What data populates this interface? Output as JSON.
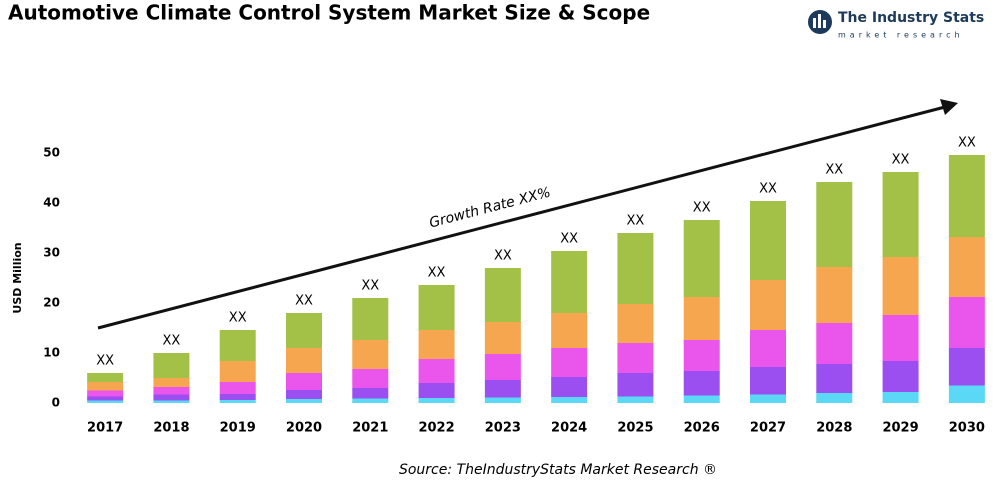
{
  "chart_data": {
    "type": "stacked-bar",
    "title": "Automotive Climate Control System Market Size & Scope",
    "brand": "The Industry Stats",
    "brand_sub": "market research",
    "y_label": "USD Million",
    "annotation": "Growth Rate XX%",
    "source": "Source: TheIndustryStats Market Research ®",
    "categories": [
      "2017",
      "2018",
      "2019",
      "2020",
      "2021",
      "2022",
      "2023",
      "2024",
      "2025",
      "2026",
      "2027",
      "2028",
      "2029",
      "2030"
    ],
    "top_labels": [
      "XX",
      "XX",
      "XX",
      "XX",
      "XX",
      "XX",
      "XX",
      "XX",
      "XX",
      "XX",
      "XX",
      "XX",
      "XX",
      "XX"
    ],
    "series": [
      {
        "color": "#5ad8f5",
        "values": [
          0.5,
          0.5,
          0.6,
          0.8,
          0.9,
          1,
          1.1,
          1.2,
          1.3,
          1.5,
          1.7,
          2,
          2.2,
          3.5
        ]
      },
      {
        "color": "#9b4ff0",
        "values": [
          0.8,
          1.2,
          1.2,
          1.8,
          2.1,
          3,
          3.5,
          4,
          4.7,
          4.9,
          5.5,
          5.8,
          6.2,
          7.5
        ]
      },
      {
        "color": "#ea55ec",
        "values": [
          1.2,
          1.5,
          2.4,
          3.4,
          3.8,
          4.8,
          5.2,
          5.8,
          6,
          6.2,
          7.4,
          8.2,
          9.2,
          10.2
        ]
      },
      {
        "color": "#f5a64e",
        "values": [
          1.7,
          1.8,
          4.2,
          5,
          5.8,
          5.8,
          6.4,
          7,
          7.8,
          8.6,
          10,
          11.2,
          11.6,
          12
        ]
      },
      {
        "color": "#a3c047",
        "values": [
          1.8,
          5,
          6.2,
          7,
          8.4,
          9,
          10.8,
          12.4,
          14.2,
          15.4,
          15.8,
          17,
          17,
          16.4
        ]
      }
    ],
    "ylim": [
      -1.6,
      52.6
    ],
    "yticks": [
      0,
      10,
      20,
      30,
      40,
      50
    ]
  }
}
